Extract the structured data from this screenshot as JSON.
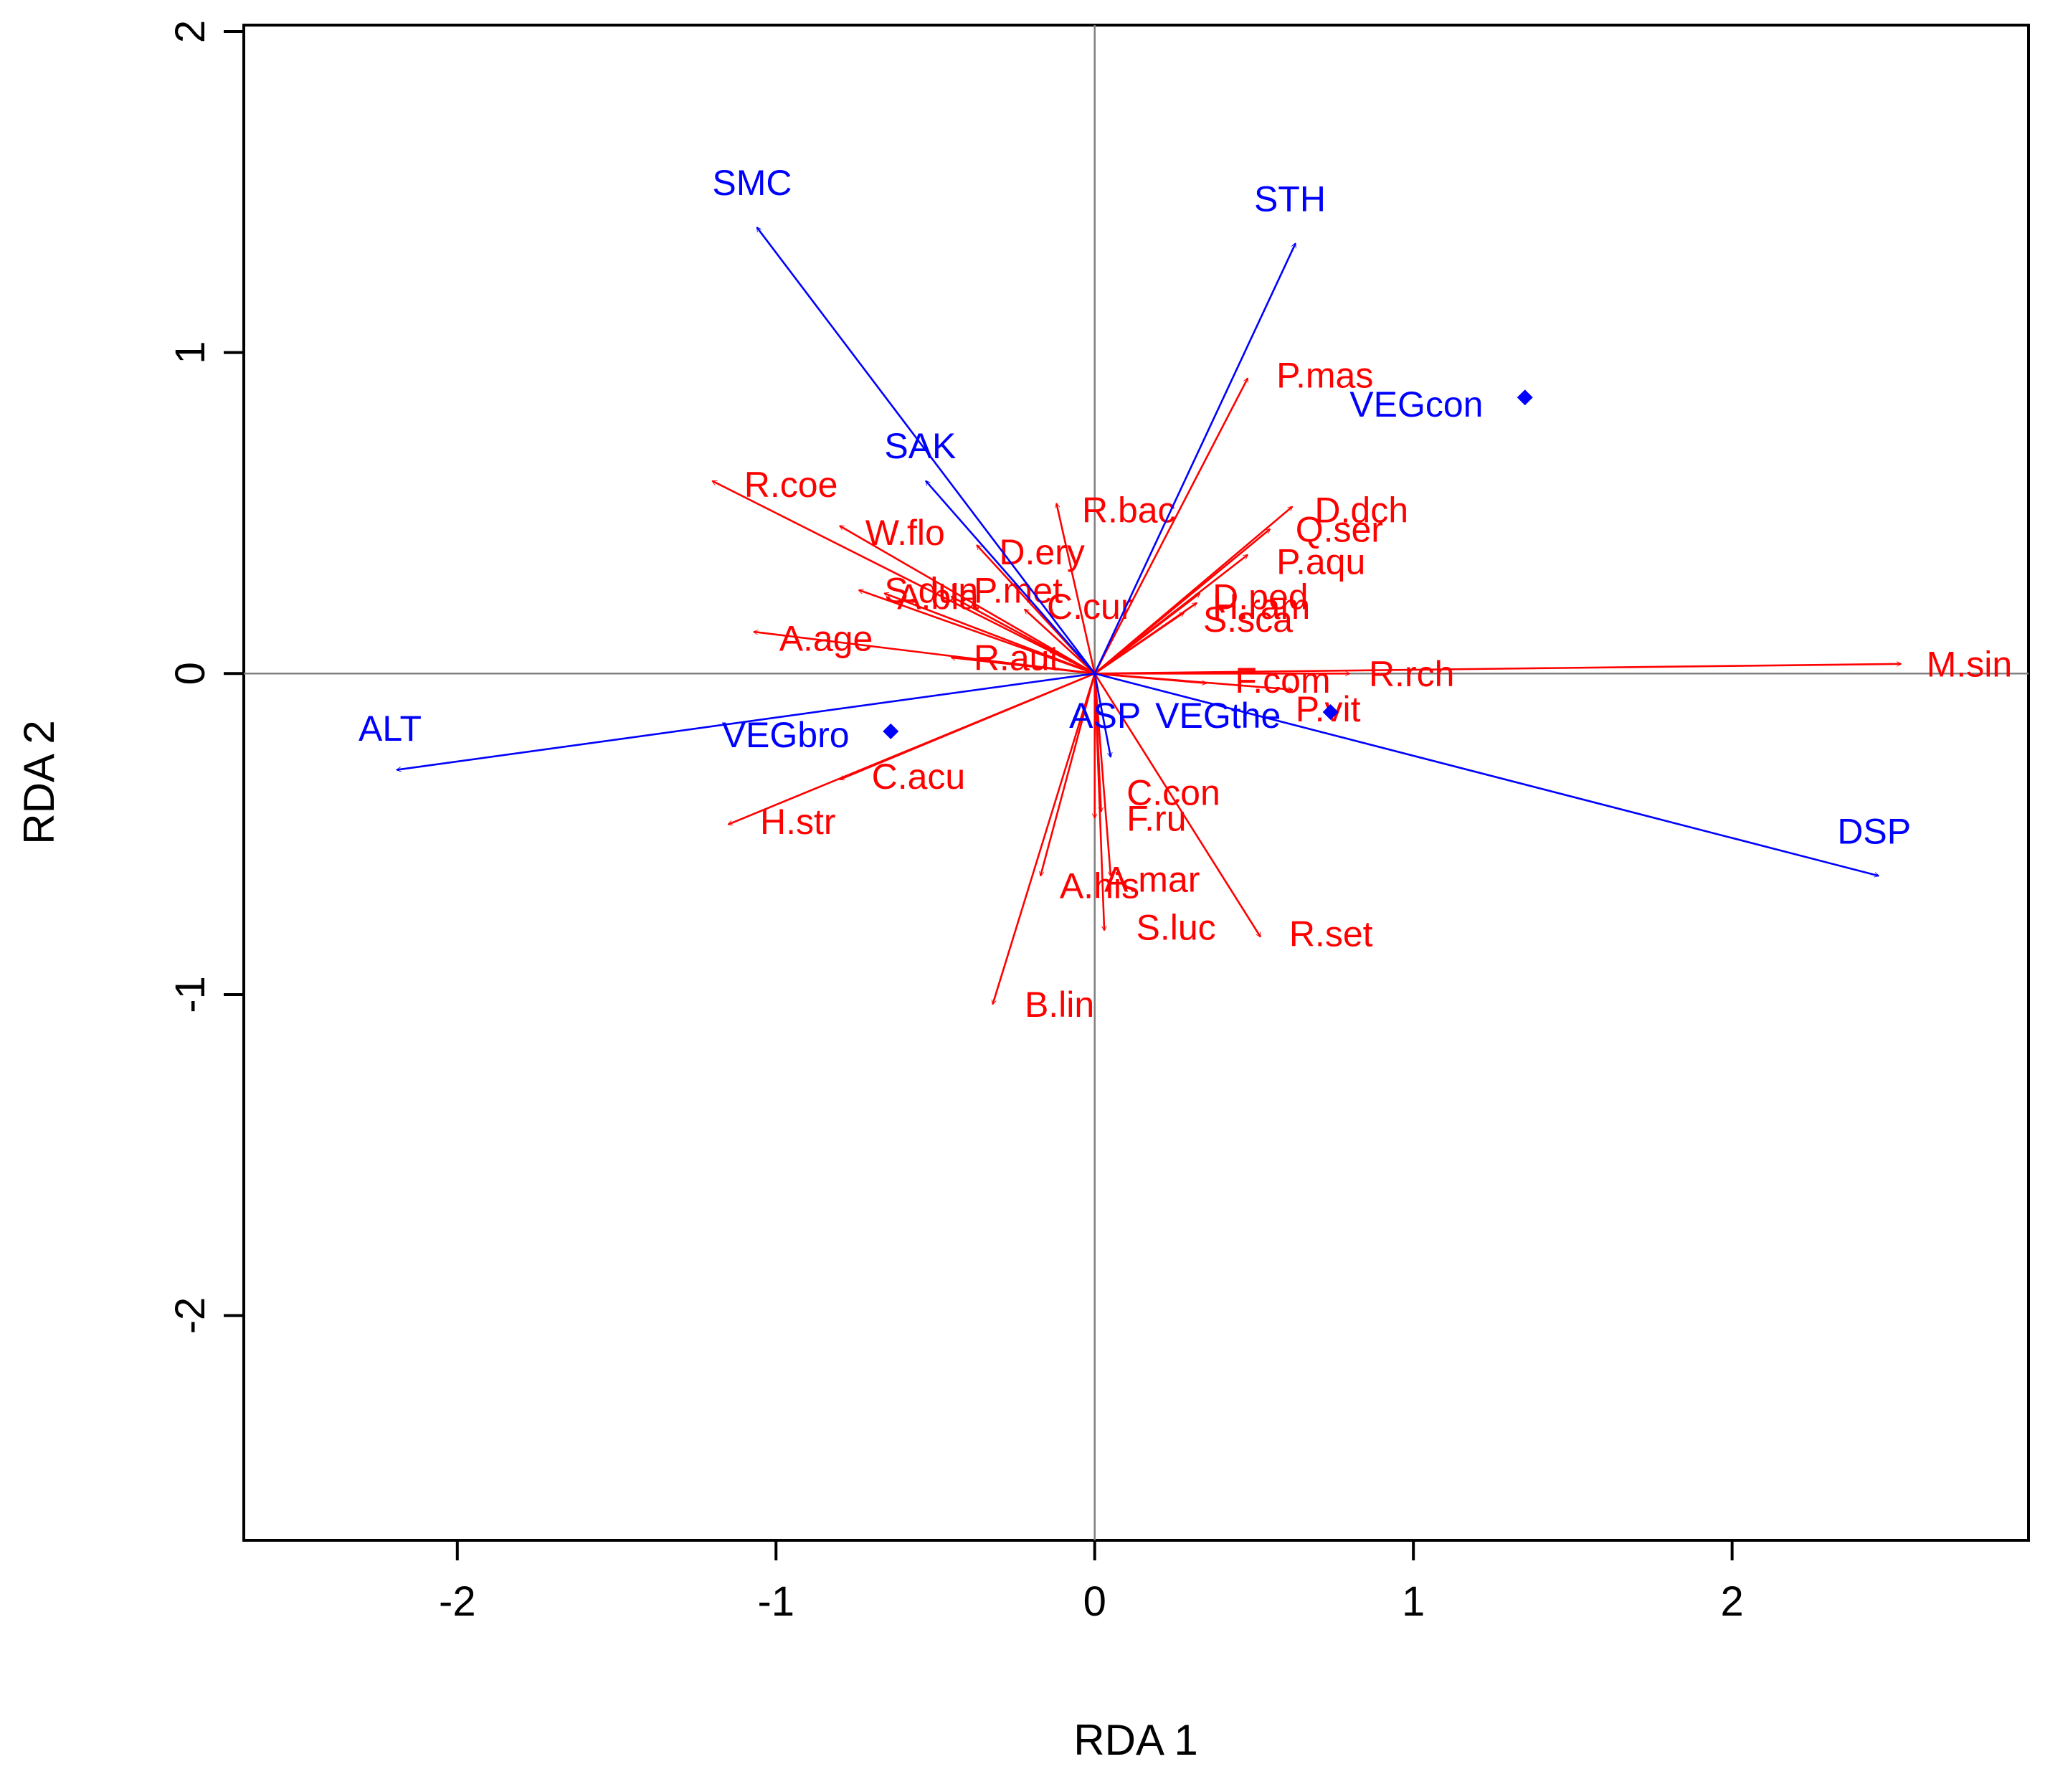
{
  "chart_data": {
    "type": "biplot",
    "xlabel": "RDA 1",
    "ylabel": "RDA 2",
    "xlim": [
      -2.67,
      2.93
    ],
    "ylim": [
      -2.7,
      2.02
    ],
    "xticks": [
      -2,
      -1,
      0,
      1,
      2
    ],
    "yticks": [
      -2,
      -1,
      0,
      1,
      2
    ],
    "xtick_labels": [
      "-2",
      "-1",
      "0",
      "1",
      "2"
    ],
    "ytick_labels": [
      "-2",
      "-1",
      "0",
      "1",
      "2"
    ],
    "colors": {
      "species": "#ff0000",
      "environment": "#0000ff",
      "axis": "#000000",
      "crosshair": "#808080"
    },
    "species": [
      {
        "name": "M.sin",
        "x": 2.53,
        "y": 0.03,
        "lx": 2.61,
        "ly": 0.02
      },
      {
        "name": "R.rch",
        "x": 0.8,
        "y": 0.0,
        "lx": 0.86,
        "ly": -0.01
      },
      {
        "name": "F.com",
        "x": 0.35,
        "y": -0.03,
        "lx": 0.44,
        "ly": -0.03
      },
      {
        "name": "P.vit",
        "x": 0.62,
        "y": -0.05,
        "lx": 0.63,
        "ly": -0.12
      },
      {
        "name": "P.mas",
        "x": 0.48,
        "y": 0.92,
        "lx": 0.57,
        "ly": 0.92
      },
      {
        "name": "D.dch",
        "x": 0.62,
        "y": 0.52,
        "lx": 0.69,
        "ly": 0.5
      },
      {
        "name": "Q.ser",
        "x": 0.55,
        "y": 0.45,
        "lx": 0.63,
        "ly": 0.44
      },
      {
        "name": "P.aqu",
        "x": 0.48,
        "y": 0.37,
        "lx": 0.57,
        "ly": 0.34
      },
      {
        "name": "D.ped",
        "x": 0.33,
        "y": 0.25,
        "lx": 0.37,
        "ly": 0.23
      },
      {
        "name": "H.ram",
        "x": 0.32,
        "y": 0.22,
        "lx": 0.37,
        "ly": 0.2
      },
      {
        "name": "S.sca",
        "x": 0.28,
        "y": 0.19,
        "lx": 0.34,
        "ly": 0.16
      },
      {
        "name": "R.bac",
        "x": -0.12,
        "y": 0.53,
        "lx": -0.04,
        "ly": 0.5
      },
      {
        "name": "D.ery",
        "x": -0.37,
        "y": 0.4,
        "lx": -0.3,
        "ly": 0.37
      },
      {
        "name": "R.coe",
        "x": -1.2,
        "y": 0.6,
        "lx": -1.1,
        "ly": 0.58
      },
      {
        "name": "W.flo",
        "x": -0.8,
        "y": 0.46,
        "lx": -0.72,
        "ly": 0.43
      },
      {
        "name": "S.dun",
        "x": -0.74,
        "y": 0.26,
        "lx": -0.66,
        "ly": 0.25
      },
      {
        "name": "A.bla",
        "x": -0.66,
        "y": 0.25,
        "lx": -0.62,
        "ly": 0.23
      },
      {
        "name": "P.met",
        "x": -0.45,
        "y": 0.24,
        "lx": -0.38,
        "ly": 0.25
      },
      {
        "name": "C.cur",
        "x": -0.22,
        "y": 0.2,
        "lx": -0.15,
        "ly": 0.2
      },
      {
        "name": "A.age",
        "x": -1.07,
        "y": 0.13,
        "lx": -0.99,
        "ly": 0.1
      },
      {
        "name": "R.aut",
        "x": -0.45,
        "y": 0.05,
        "lx": -0.38,
        "ly": 0.04
      },
      {
        "name": "C.acu",
        "x": -0.8,
        "y": -0.33,
        "lx": -0.7,
        "ly": -0.33
      },
      {
        "name": "H.str",
        "x": -1.15,
        "y": -0.47,
        "lx": -1.05,
        "ly": -0.47
      },
      {
        "name": "C.con",
        "x": 0.02,
        "y": -0.43,
        "lx": 0.1,
        "ly": -0.38
      },
      {
        "name": "F.ru",
        "x": 0.0,
        "y": -0.45,
        "lx": 0.1,
        "ly": -0.46
      },
      {
        "name": "A.his",
        "x": -0.17,
        "y": -0.63,
        "lx": -0.11,
        "ly": -0.67
      },
      {
        "name": "A.mar",
        "x": 0.05,
        "y": -0.63,
        "lx": 0.03,
        "ly": -0.65
      },
      {
        "name": "S.luc",
        "x": 0.03,
        "y": -0.8,
        "lx": 0.13,
        "ly": -0.8
      },
      {
        "name": "R.set",
        "x": 0.52,
        "y": -0.82,
        "lx": 0.61,
        "ly": -0.82
      },
      {
        "name": "B.lin",
        "x": -0.32,
        "y": -1.03,
        "lx": -0.22,
        "ly": -1.04
      }
    ],
    "environment_vectors": [
      {
        "name": "SMC",
        "x": -1.06,
        "y": 1.39,
        "lx": -1.2,
        "ly": 1.52
      },
      {
        "name": "STH",
        "x": 0.63,
        "y": 1.34,
        "lx": 0.5,
        "ly": 1.47
      },
      {
        "name": "SAK",
        "x": -0.53,
        "y": 0.6,
        "lx": -0.66,
        "ly": 0.7
      },
      {
        "name": "ALT",
        "x": -2.19,
        "y": -0.3,
        "lx": -2.31,
        "ly": -0.18
      },
      {
        "name": "DSP",
        "x": 2.46,
        "y": -0.63,
        "lx": 2.33,
        "ly": -0.5
      },
      {
        "name": "ASP",
        "x": 0.05,
        "y": -0.26,
        "lx": -0.08,
        "ly": -0.14
      }
    ],
    "environment_centroids": [
      {
        "name": "VEGcon",
        "x": 1.35,
        "y": 0.86,
        "lx": 0.8,
        "ly": 0.83
      },
      {
        "name": "VEGbro",
        "x": -0.64,
        "y": -0.18,
        "lx": -1.17,
        "ly": -0.2
      },
      {
        "name": "VEGthe",
        "x": 0.74,
        "y": -0.12,
        "lx": 0.19,
        "ly": -0.14
      }
    ]
  }
}
